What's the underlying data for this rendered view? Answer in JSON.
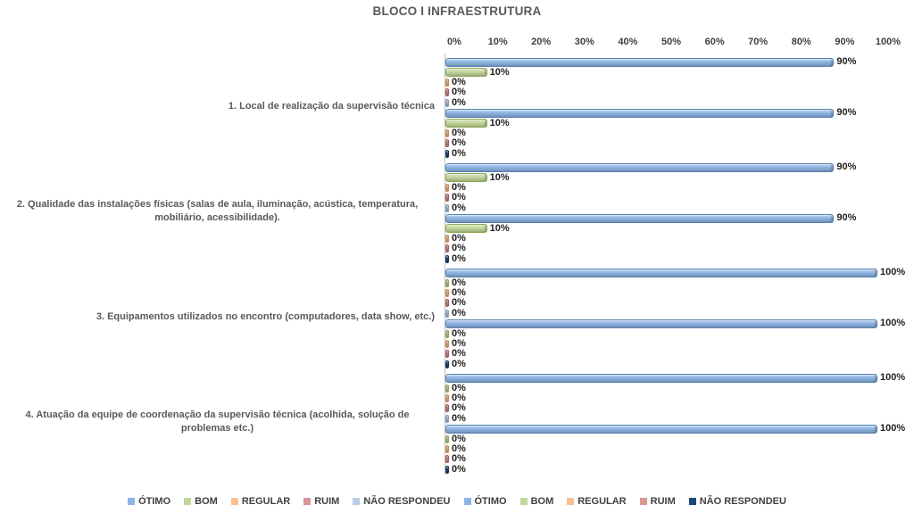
{
  "title": "BLOCO I INFRAESTRUTURA",
  "chart_data": {
    "type": "bar",
    "orientation": "horizontal",
    "title": "BLOCO I INFRAESTRUTURA",
    "xlim": [
      0,
      100
    ],
    "x_ticks": [
      "0%",
      "10%",
      "20%",
      "30%",
      "40%",
      "50%",
      "60%",
      "70%",
      "80%",
      "90%",
      "100%"
    ],
    "grid": false,
    "legend_position": "bottom",
    "data_label_format": "{value}%",
    "categories": [
      "1. Local de realização da supervisão técnica",
      "2. Qualidade das instalações físicas (salas de aula, iluminação, acústica, temperatura, mobiliário, acessibilidade).",
      "3. Equipamentos utilizados no encontro (computadores, data show, etc.)",
      "4. Atuação da equipe de coordenação da supervisão técnica (acolhida, solução de problemas etc.)"
    ],
    "series": [
      {
        "name": "ÓTIMO",
        "fill": "#8DB4E2",
        "border": "#5581B5",
        "values": [
          90,
          90,
          100,
          100
        ]
      },
      {
        "name": "BOM",
        "fill": "#C3D69B",
        "border": "#8CA854",
        "values": [
          10,
          10,
          0,
          0
        ]
      },
      {
        "name": "REGULAR",
        "fill": "#FAC090",
        "border": "#C98B4E",
        "values": [
          0,
          0,
          0,
          0
        ]
      },
      {
        "name": "RUIM",
        "fill": "#D99694",
        "border": "#A25A58",
        "values": [
          0,
          0,
          0,
          0
        ]
      },
      {
        "name": "NÃO RESPONDEU",
        "fill": "#B9CDE5",
        "border": "#7F9DC0",
        "values": [
          0,
          0,
          0,
          0
        ]
      },
      {
        "name": "ÓTIMO",
        "fill": "#8DB4E2",
        "border": "#5581B5",
        "values": [
          90,
          90,
          100,
          100
        ]
      },
      {
        "name": "BOM",
        "fill": "#C3D69B",
        "border": "#8CA854",
        "values": [
          10,
          10,
          0,
          0
        ]
      },
      {
        "name": "REGULAR",
        "fill": "#FAC090",
        "border": "#C98B4E",
        "values": [
          0,
          0,
          0,
          0
        ]
      },
      {
        "name": "RUIM",
        "fill": "#D99694",
        "border": "#A25A58",
        "values": [
          0,
          0,
          0,
          0
        ]
      },
      {
        "name": "NÃO RESPONDEU",
        "fill": "#1F497D",
        "border": "#16345A",
        "values": [
          0,
          0,
          0,
          0
        ]
      }
    ]
  }
}
